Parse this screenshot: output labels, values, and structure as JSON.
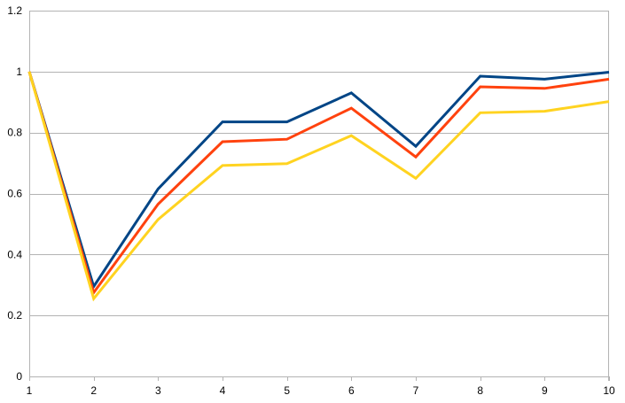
{
  "chart_data": {
    "type": "line",
    "title": "",
    "xlabel": "",
    "ylabel": "",
    "x": [
      1,
      2,
      3,
      4,
      5,
      6,
      7,
      8,
      9,
      10
    ],
    "x_tick_labels": [
      "1",
      "2",
      "3",
      "4",
      "5",
      "6",
      "7",
      "8",
      "9",
      "10"
    ],
    "y_tick_labels": [
      "0",
      "0.2",
      "0.4",
      "0.6",
      "0.8",
      "1",
      "1.2"
    ],
    "ylim": [
      0,
      1.2
    ],
    "y_ticks": [
      0,
      0.2,
      0.4,
      0.6,
      0.8,
      1.0,
      1.2
    ],
    "grid": true,
    "legend": "none",
    "series": [
      {
        "color": "#004586",
        "values": [
          1.0,
          0.295,
          0.615,
          0.835,
          0.835,
          0.93,
          0.755,
          0.985,
          0.975,
          0.998
        ]
      },
      {
        "color": "#ff420e",
        "values": [
          1.0,
          0.275,
          0.565,
          0.77,
          0.778,
          0.88,
          0.72,
          0.95,
          0.945,
          0.975
        ]
      },
      {
        "color": "#ffd320",
        "values": [
          1.0,
          0.255,
          0.515,
          0.692,
          0.698,
          0.79,
          0.65,
          0.865,
          0.87,
          0.902
        ]
      }
    ]
  }
}
